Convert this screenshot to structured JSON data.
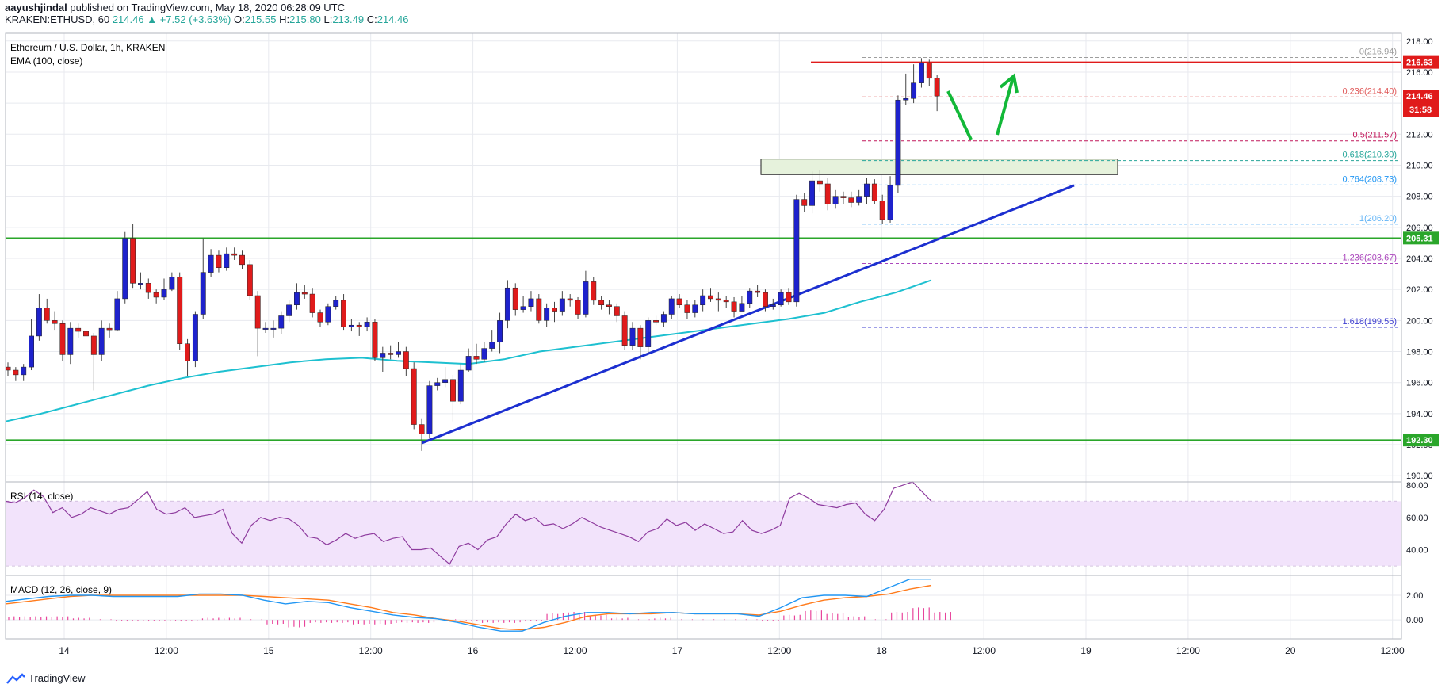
{
  "header": {
    "author": "aayushjindal",
    "published": "published on TradingView.com, May 18, 2020 06:28:09 UTC",
    "symbol": "KRAKEN:ETHUSD, 60",
    "last": "214.46",
    "change": "+7.52 (+3.63%)",
    "o_label": "O:",
    "o": "215.55",
    "h_label": "H:",
    "h": "215.80",
    "l_label": "L:",
    "l": "213.49",
    "c_label": "C:",
    "c": "214.46"
  },
  "legend": {
    "title": "Ethereum / U.S. Dollar, 1h, KRAKEN",
    "ema": "EMA (100, close)",
    "rsi": "RSI (14, close)",
    "macd": "MACD (12, 26, close, 9)"
  },
  "footer": {
    "brand": "TradingView"
  },
  "colors": {
    "up": "#1e22cc",
    "down": "#e01b1b",
    "ema": "#1ec0d0",
    "trend": "#1c2fd0",
    "horizontal": "#2aa62a",
    "resistance": "#e01b1b",
    "rsi": "#8e3b9e",
    "rsi_band": "#f2e3fb",
    "macd": "#2196f3",
    "signal": "#ff7b1c",
    "hist": "#e5248a"
  },
  "chart_data": {
    "type": "candlestick",
    "price_axis": {
      "ylim": [
        189.5,
        218.5
      ],
      "ticks": [
        "190.00",
        "192.00",
        "194.00",
        "196.00",
        "198.00",
        "200.00",
        "202.00",
        "204.00",
        "206.00",
        "208.00",
        "210.00",
        "212.00",
        "214.00",
        "216.00",
        "218.00"
      ]
    },
    "time_axis": {
      "labels": [
        "14",
        "12:00",
        "15",
        "12:00",
        "16",
        "12:00",
        "17",
        "12:00",
        "18",
        "12:00",
        "19",
        "12:00",
        "20",
        "12:00"
      ]
    },
    "candles": [
      [
        197.0,
        196.8,
        197.3,
        196.4
      ],
      [
        196.8,
        196.5,
        197.0,
        196.1
      ],
      [
        196.5,
        197.0,
        197.2,
        196.1
      ],
      [
        197.0,
        199.0,
        200.1,
        196.8
      ],
      [
        199.0,
        200.8,
        201.7,
        198.7
      ],
      [
        200.8,
        200.0,
        201.4,
        199.8
      ],
      [
        200.0,
        199.8,
        200.6,
        199.4
      ],
      [
        199.8,
        197.8,
        200.0,
        197.4
      ],
      [
        197.8,
        199.5,
        199.9,
        197.2
      ],
      [
        199.5,
        199.3,
        199.8,
        198.9
      ],
      [
        199.3,
        199.0,
        199.9,
        198.8
      ],
      [
        199.0,
        197.8,
        199.2,
        195.5
      ],
      [
        197.8,
        199.5,
        200.0,
        197.4
      ],
      [
        199.5,
        199.4,
        199.8,
        198.9
      ],
      [
        199.4,
        201.4,
        201.9,
        199.3
      ],
      [
        201.4,
        205.3,
        205.7,
        201.1
      ],
      [
        205.3,
        202.4,
        206.2,
        202.1
      ],
      [
        202.4,
        202.4,
        203.1,
        202.0
      ],
      [
        202.4,
        201.8,
        202.7,
        201.4
      ],
      [
        201.8,
        201.5,
        202.0,
        201.1
      ],
      [
        201.5,
        202.0,
        202.7,
        201.3
      ],
      [
        202.0,
        202.8,
        203.1,
        201.9
      ],
      [
        202.8,
        198.5,
        203.1,
        198.1
      ],
      [
        198.5,
        197.4,
        198.8,
        196.4
      ],
      [
        197.4,
        200.4,
        200.6,
        197.0
      ],
      [
        200.4,
        203.1,
        205.3,
        200.1
      ],
      [
        203.1,
        204.2,
        204.6,
        202.8
      ],
      [
        204.2,
        203.4,
        204.5,
        203.1
      ],
      [
        203.4,
        204.3,
        204.7,
        203.2
      ],
      [
        204.3,
        204.2,
        204.7,
        203.9
      ],
      [
        204.2,
        203.6,
        204.5,
        203.3
      ],
      [
        203.6,
        201.6,
        203.9,
        201.3
      ],
      [
        201.6,
        199.5,
        201.9,
        197.7
      ],
      [
        199.5,
        199.5,
        199.9,
        199.2
      ],
      [
        199.5,
        199.5,
        200.0,
        198.9
      ],
      [
        199.5,
        200.3,
        200.6,
        199.1
      ],
      [
        200.3,
        201.0,
        201.3,
        199.9
      ],
      [
        201.0,
        201.8,
        202.4,
        200.7
      ],
      [
        201.8,
        201.7,
        202.3,
        201.4
      ],
      [
        201.7,
        200.5,
        202.1,
        200.2
      ],
      [
        200.5,
        199.9,
        200.7,
        199.6
      ],
      [
        199.9,
        200.9,
        201.1,
        199.7
      ],
      [
        200.9,
        201.3,
        201.6,
        200.7
      ],
      [
        201.3,
        199.6,
        201.7,
        199.4
      ],
      [
        199.6,
        199.7,
        200.1,
        199.3
      ],
      [
        199.7,
        199.6,
        199.9,
        199.0
      ],
      [
        199.6,
        199.9,
        200.2,
        199.3
      ],
      [
        199.9,
        197.6,
        200.1,
        197.4
      ],
      [
        197.6,
        197.9,
        198.3,
        196.7
      ],
      [
        197.9,
        197.8,
        198.4,
        197.5
      ],
      [
        197.8,
        198.0,
        198.6,
        197.6
      ],
      [
        198.0,
        196.9,
        198.3,
        196.4
      ],
      [
        196.9,
        193.3,
        197.3,
        193.0
      ],
      [
        193.3,
        192.7,
        193.7,
        191.6
      ],
      [
        192.7,
        195.8,
        196.1,
        192.4
      ],
      [
        195.8,
        196.0,
        196.3,
        195.5
      ],
      [
        196.0,
        196.2,
        197.0,
        195.7
      ],
      [
        196.2,
        194.8,
        196.5,
        193.5
      ],
      [
        194.8,
        196.8,
        197.2,
        194.6
      ],
      [
        196.8,
        197.7,
        198.2,
        196.7
      ],
      [
        197.7,
        197.5,
        198.5,
        197.2
      ],
      [
        197.5,
        198.2,
        198.6,
        197.3
      ],
      [
        198.2,
        198.6,
        199.4,
        198.0
      ],
      [
        198.6,
        200.0,
        200.5,
        197.9
      ],
      [
        200.0,
        202.1,
        202.6,
        199.5
      ],
      [
        202.1,
        200.7,
        202.4,
        200.3
      ],
      [
        200.7,
        200.9,
        201.6,
        200.5
      ],
      [
        200.9,
        201.4,
        201.9,
        200.6
      ],
      [
        201.4,
        200.0,
        201.7,
        199.8
      ],
      [
        200.0,
        200.8,
        201.1,
        199.6
      ],
      [
        200.8,
        200.6,
        201.2,
        199.9
      ],
      [
        200.6,
        201.4,
        201.9,
        200.3
      ],
      [
        201.4,
        201.3,
        201.7,
        200.9
      ],
      [
        201.3,
        200.4,
        201.5,
        200.1
      ],
      [
        200.4,
        202.5,
        203.2,
        200.2
      ],
      [
        202.5,
        201.3,
        202.8,
        201.0
      ],
      [
        201.3,
        201.0,
        201.6,
        200.7
      ],
      [
        201.0,
        200.9,
        201.3,
        200.4
      ],
      [
        200.9,
        200.3,
        201.1,
        199.9
      ],
      [
        200.3,
        198.4,
        200.6,
        198.1
      ],
      [
        198.4,
        199.5,
        199.9,
        198.1
      ],
      [
        199.5,
        198.3,
        199.7,
        197.5
      ],
      [
        198.3,
        200.0,
        200.2,
        197.8
      ],
      [
        200.0,
        199.9,
        200.3,
        199.7
      ],
      [
        199.9,
        200.4,
        200.6,
        199.6
      ],
      [
        200.4,
        201.4,
        201.6,
        200.1
      ],
      [
        201.4,
        201.0,
        201.7,
        200.8
      ],
      [
        201.0,
        200.5,
        201.3,
        200.1
      ],
      [
        200.5,
        201.0,
        201.3,
        200.2
      ],
      [
        201.0,
        201.6,
        202.0,
        200.6
      ],
      [
        201.6,
        201.4,
        202.1,
        201.2
      ],
      [
        201.4,
        201.3,
        201.8,
        200.6
      ],
      [
        201.3,
        201.2,
        201.6,
        200.8
      ],
      [
        201.2,
        200.6,
        201.5,
        200.2
      ],
      [
        200.6,
        201.1,
        201.6,
        200.8
      ],
      [
        201.1,
        201.9,
        202.1,
        200.8
      ],
      [
        201.9,
        201.8,
        202.3,
        201.5
      ],
      [
        201.8,
        200.9,
        202.0,
        200.6
      ],
      [
        200.9,
        201.0,
        201.4,
        200.7
      ],
      [
        201.0,
        201.8,
        202.0,
        200.9
      ],
      [
        201.8,
        201.2,
        202.1,
        201.0
      ],
      [
        201.2,
        207.8,
        208.1,
        200.9
      ],
      [
        207.8,
        207.4,
        208.2,
        207.0
      ],
      [
        207.4,
        209.0,
        209.6,
        206.9
      ],
      [
        209.0,
        208.8,
        209.7,
        208.3
      ],
      [
        208.8,
        207.5,
        209.2,
        207.1
      ],
      [
        207.5,
        208.0,
        208.4,
        207.2
      ],
      [
        208.0,
        207.9,
        208.3,
        207.5
      ],
      [
        207.9,
        207.6,
        208.3,
        207.3
      ],
      [
        207.6,
        208.0,
        208.4,
        207.4
      ],
      [
        208.0,
        208.8,
        209.2,
        207.5
      ],
      [
        208.8,
        207.7,
        209.1,
        207.5
      ],
      [
        207.7,
        206.5,
        208.1,
        206.2
      ],
      [
        206.5,
        208.7,
        209.3,
        206.3
      ],
      [
        208.7,
        214.2,
        214.5,
        208.2
      ],
      [
        214.2,
        214.3,
        215.9,
        213.9
      ],
      [
        214.3,
        215.3,
        216.5,
        214.0
      ],
      [
        215.3,
        216.6,
        216.9,
        215.0
      ],
      [
        216.6,
        215.6,
        216.8,
        215.1
      ],
      [
        215.6,
        214.46,
        215.8,
        213.49
      ]
    ],
    "ema_100": [
      193.5,
      194.0,
      194.6,
      195.2,
      195.8,
      196.3,
      196.7,
      197.0,
      197.3,
      197.5,
      197.6,
      197.4,
      197.3,
      197.2,
      197.5,
      198.0,
      198.3,
      198.6,
      198.9,
      199.2,
      199.5,
      199.8,
      200.1,
      200.5,
      201.2,
      201.8,
      202.6
    ],
    "fibonacci": [
      {
        "ratio": "0",
        "value": "216.94"
      },
      {
        "ratio": "0.236",
        "value": "214.40"
      },
      {
        "ratio": "0.5",
        "value": "211.57"
      },
      {
        "ratio": "0.618",
        "value": "210.30"
      },
      {
        "ratio": "0.764",
        "value": "208.73"
      },
      {
        "ratio": "1",
        "value": "206.20"
      },
      {
        "ratio": "1.236",
        "value": "203.67"
      },
      {
        "ratio": "1.618",
        "value": "199.56"
      }
    ],
    "levels": {
      "resistance": {
        "value": 216.63,
        "label": "216.63"
      },
      "current": {
        "value": 214.46,
        "label": "214.46",
        "countdown": "31:58"
      },
      "horizontal_top": {
        "value": 205.31,
        "label": "205.31"
      },
      "horizontal_bottom": {
        "value": 192.3,
        "label": "192.30"
      },
      "box": [
        209.4,
        210.4
      ]
    },
    "trendline": [
      [
        192.1,
        0.0
      ],
      [
        208.7,
        1.0
      ]
    ],
    "rsi": {
      "ylim": [
        25,
        82
      ],
      "ticks": [
        "40.00",
        "60.00",
        "80.00"
      ],
      "band": [
        30,
        70
      ],
      "values": [
        70,
        69,
        72,
        77,
        73,
        63,
        66,
        60,
        62,
        66,
        64,
        62,
        65,
        66,
        71,
        76,
        65,
        62,
        63,
        66,
        60,
        61,
        62,
        65,
        50,
        44,
        55,
        60,
        58,
        60,
        59,
        55,
        48,
        47,
        43,
        46,
        50,
        47,
        49,
        50,
        45,
        47,
        48,
        40,
        40,
        41,
        36,
        31,
        42,
        44,
        40,
        46,
        48,
        56,
        62,
        58,
        60,
        55,
        56,
        53,
        56,
        60,
        57,
        54,
        52,
        50,
        48,
        45,
        51,
        53,
        59,
        55,
        57,
        52,
        56,
        53,
        50,
        51,
        58,
        52,
        50,
        52,
        55,
        72,
        75,
        72,
        68,
        67,
        66,
        68,
        69,
        62,
        58,
        65,
        78,
        80,
        82,
        76,
        70
      ]
    },
    "macd": {
      "ylim": [
        -1.4,
        3.6
      ],
      "ticks": [
        "0.00",
        "2.00"
      ],
      "macd": [
        1.5,
        1.7,
        1.9,
        2.0,
        2.0,
        1.9,
        1.9,
        1.9,
        1.9,
        2.1,
        2.1,
        2.0,
        1.6,
        1.3,
        1.5,
        1.4,
        1.0,
        0.7,
        0.4,
        0.2,
        0.1,
        -0.2,
        -0.6,
        -0.9,
        -0.9,
        -0.2,
        0.3,
        0.6,
        0.6,
        0.5,
        0.6,
        0.6,
        0.5,
        0.5,
        0.5,
        0.3,
        1.0,
        1.8,
        2.0,
        2.0,
        1.9,
        2.6,
        3.3,
        3.3
      ],
      "signal": [
        1.3,
        1.5,
        1.7,
        1.9,
        2.0,
        2.0,
        2.0,
        2.0,
        2.0,
        2.0,
        2.0,
        2.0,
        1.9,
        1.8,
        1.7,
        1.6,
        1.3,
        1.0,
        0.6,
        0.4,
        0.1,
        -0.1,
        -0.4,
        -0.7,
        -0.8,
        -0.6,
        -0.2,
        0.3,
        0.5,
        0.5,
        0.5,
        0.6,
        0.5,
        0.5,
        0.5,
        0.4,
        0.7,
        1.2,
        1.6,
        1.8,
        1.9,
        2.1,
        2.5,
        2.8
      ]
    }
  }
}
